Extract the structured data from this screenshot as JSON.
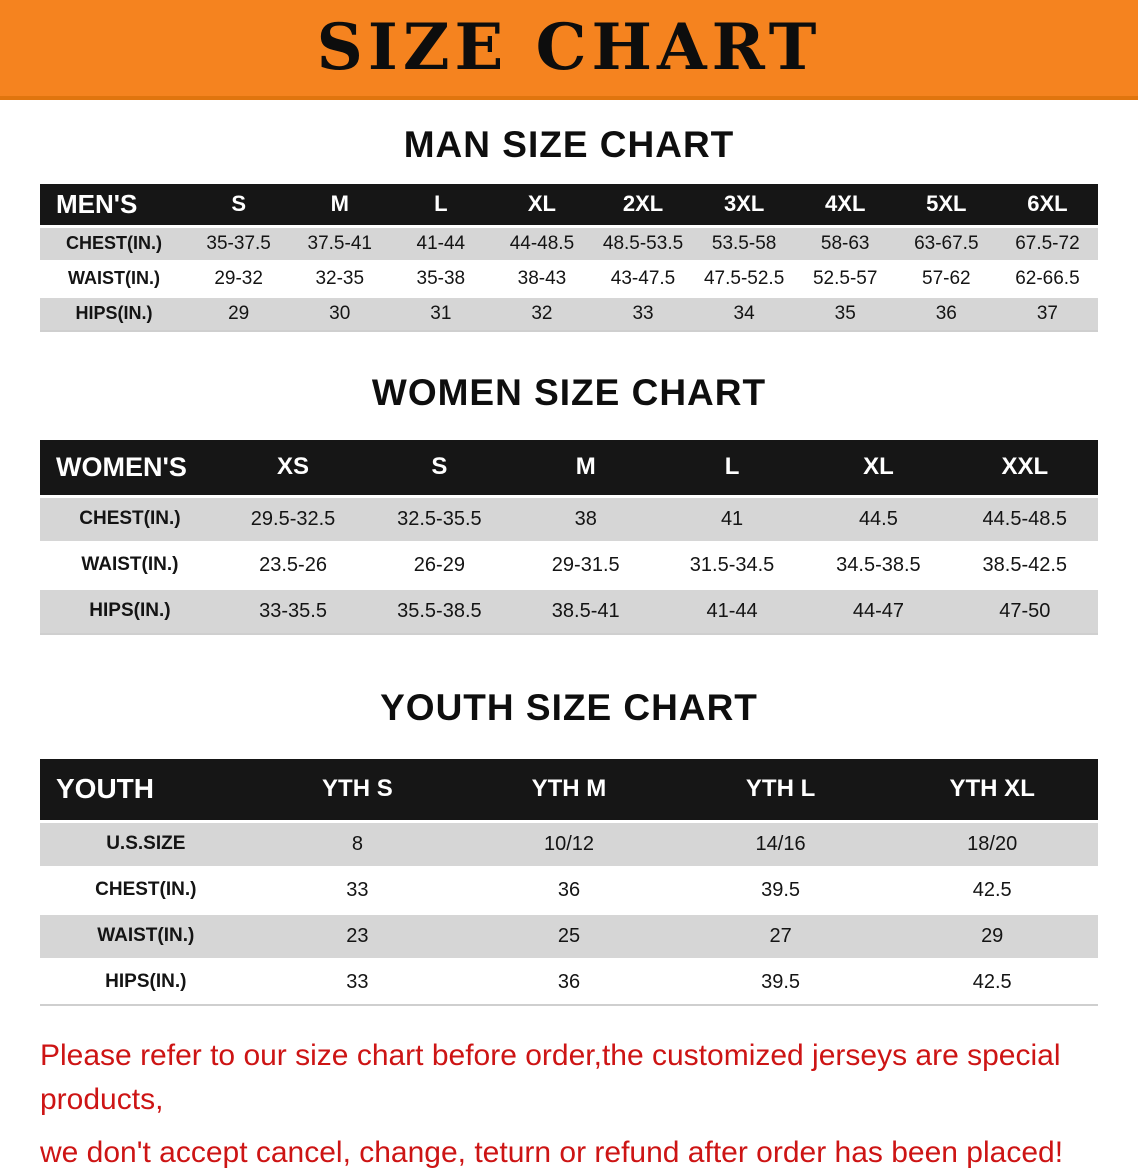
{
  "banner": {
    "title": "SIZE CHART"
  },
  "men": {
    "heading": "MAN SIZE CHART",
    "table": {
      "header": [
        "MEN'S",
        "S",
        "M",
        "L",
        "XL",
        "2XL",
        "3XL",
        "4XL",
        "5XL",
        "6XL"
      ],
      "rows": [
        [
          "CHEST(IN.)",
          "35-37.5",
          "37.5-41",
          "41-44",
          "44-48.5",
          "48.5-53.5",
          "53.5-58",
          "58-63",
          "63-67.5",
          "67.5-72"
        ],
        [
          "WAIST(IN.)",
          "29-32",
          "32-35",
          "35-38",
          "38-43",
          "43-47.5",
          "47.5-52.5",
          "52.5-57",
          "57-62",
          "62-66.5"
        ],
        [
          "HIPS(IN.)",
          "29",
          "30",
          "31",
          "32",
          "33",
          "34",
          "35",
          "36",
          "37"
        ]
      ]
    }
  },
  "women": {
    "heading": "WOMEN SIZE CHART",
    "table": {
      "header": [
        "WOMEN'S",
        "XS",
        "S",
        "M",
        "L",
        "XL",
        "XXL"
      ],
      "rows": [
        [
          "CHEST(IN.)",
          "29.5-32.5",
          "32.5-35.5",
          "38",
          "41",
          "44.5",
          "44.5-48.5"
        ],
        [
          "WAIST(IN.)",
          "23.5-26",
          "26-29",
          "29-31.5",
          "31.5-34.5",
          "34.5-38.5",
          "38.5-42.5"
        ],
        [
          "HIPS(IN.)",
          "33-35.5",
          "35.5-38.5",
          "38.5-41",
          "41-44",
          "44-47",
          "47-50"
        ]
      ]
    }
  },
  "youth": {
    "heading": "YOUTH SIZE CHART",
    "table": {
      "header": [
        "YOUTH",
        "YTH S",
        "YTH M",
        "YTH L",
        "YTH XL"
      ],
      "rows": [
        [
          "U.S.SIZE",
          "8",
          "10/12",
          "14/16",
          "18/20"
        ],
        [
          "CHEST(IN.)",
          "33",
          "36",
          "39.5",
          "42.5"
        ],
        [
          "WAIST(IN.)",
          "23",
          "25",
          "27",
          "29"
        ],
        [
          "HIPS(IN.)",
          "33",
          "36",
          "39.5",
          "42.5"
        ]
      ]
    }
  },
  "notice": {
    "lines": [
      "Please refer to our size chart before order,the customized jerseys are special products,",
      "we don't accept cancel, change, teturn or refund after order has been placed!"
    ]
  },
  "colors": {
    "banner_bg": "#f5831f",
    "header_bar": "#161616",
    "row_gray": "#d6d6d6",
    "notice_red": "#cd1414"
  }
}
